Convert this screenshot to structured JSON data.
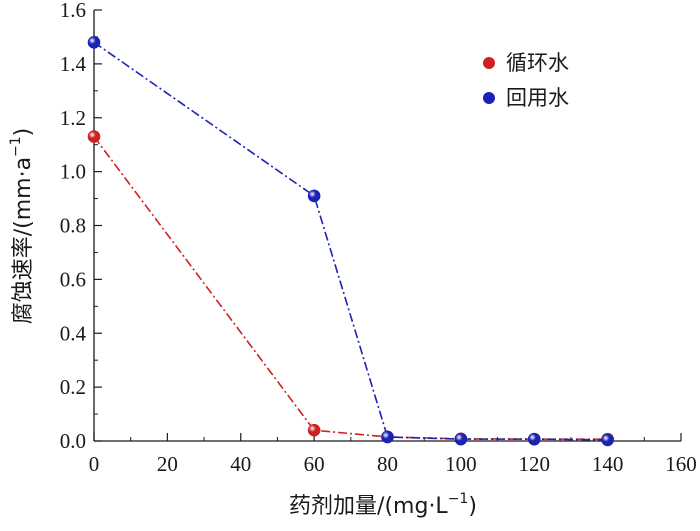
{
  "chart_data": {
    "type": "line",
    "x": [
      0,
      60,
      80,
      100,
      120,
      140
    ],
    "series": [
      {
        "name": "循环水",
        "values": [
          1.13,
          0.04,
          0.015,
          0.008,
          0.007,
          0.007
        ],
        "color": "#cc2222"
      },
      {
        "name": "回用水",
        "values": [
          1.48,
          0.91,
          0.015,
          0.007,
          0.007,
          0.004
        ],
        "color": "#1a22b4"
      }
    ],
    "xlim": [
      0,
      160
    ],
    "ylim": [
      0,
      1.6
    ],
    "xticks": [
      "0",
      "20",
      "40",
      "60",
      "80",
      "100",
      "120",
      "140",
      "160"
    ],
    "yticks": [
      "0.0",
      "0.2",
      "0.4",
      "0.6",
      "0.8",
      "1.0",
      "1.2",
      "1.4",
      "1.6"
    ],
    "xlabel": {
      "main": "药剂加量/(mg·L",
      "sup": "−1",
      "end": ")"
    },
    "ylabel": {
      "main": "腐蚀速率/(mm·a",
      "sup": "−1",
      "end": ")"
    },
    "legend_position": "top-right",
    "line_style": "dash-dot",
    "grid": false
  }
}
